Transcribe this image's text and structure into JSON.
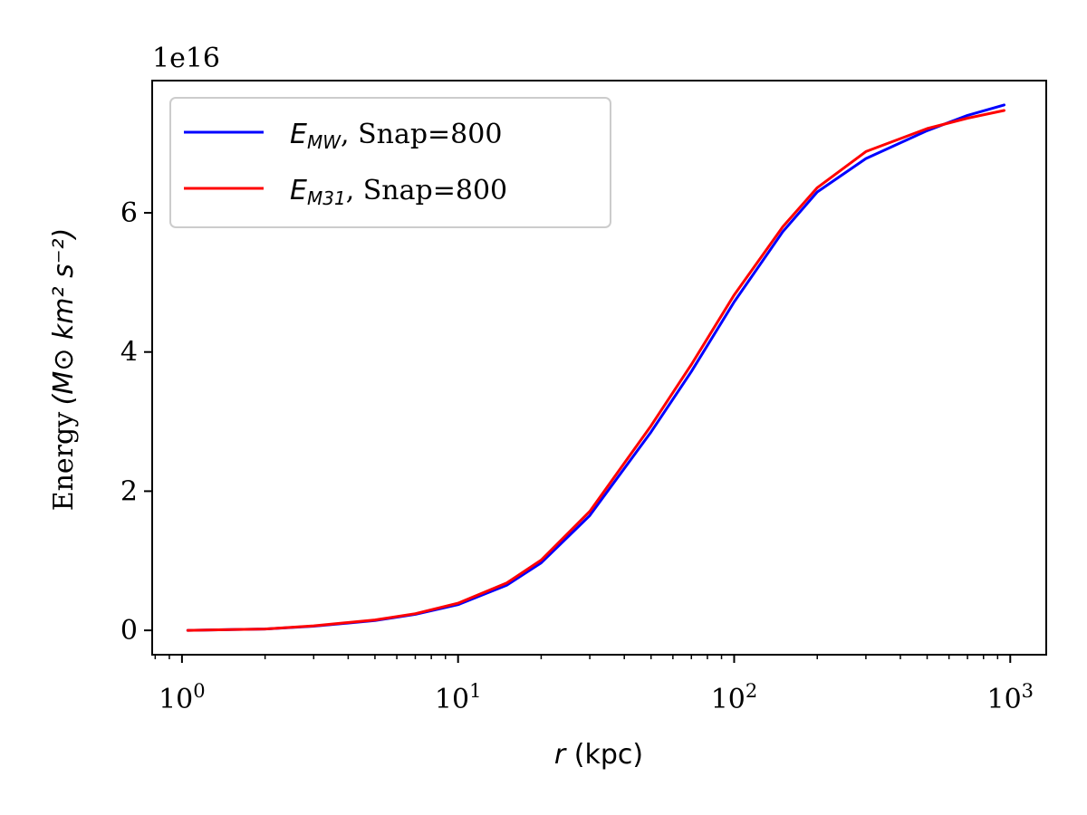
{
  "chart_data": {
    "type": "line",
    "xlabel_var": "r",
    "xlabel_unit": "(kpc)",
    "ylabel_text": "Energy",
    "ylabel_unit": "(M⊙ km² s⁻²)",
    "offset_text": "1e16",
    "x_scale": "log",
    "xlim": [
      0.78,
      1350
    ],
    "ylim": [
      -0.35,
      7.9
    ],
    "y_multiplier": 1e+16,
    "x_ticks": [
      {
        "value": 1,
        "base": "10",
        "exp": "0"
      },
      {
        "value": 10,
        "base": "10",
        "exp": "1"
      },
      {
        "value": 100,
        "base": "10",
        "exp": "2"
      },
      {
        "value": 1000,
        "base": "10",
        "exp": "3"
      }
    ],
    "y_ticks": [
      {
        "value": 0,
        "label": "0"
      },
      {
        "value": 2,
        "label": "2"
      },
      {
        "value": 4,
        "label": "4"
      },
      {
        "value": 6,
        "label": "6"
      }
    ],
    "grid": false,
    "legend_position": "upper-left",
    "series": [
      {
        "name_main": "E",
        "name_sub": "MW",
        "name_rest": ", Snap=800",
        "color": "#0000ff",
        "x": [
          1.05,
          2,
          3,
          5,
          7,
          10,
          15,
          20,
          30,
          50,
          70,
          100,
          150,
          200,
          300,
          500,
          700,
          950
        ],
        "y": [
          0.0,
          0.02,
          0.06,
          0.14,
          0.23,
          0.37,
          0.65,
          0.97,
          1.65,
          2.85,
          3.72,
          4.72,
          5.73,
          6.3,
          6.78,
          7.18,
          7.4,
          7.55
        ]
      },
      {
        "name_main": "E",
        "name_sub": "M31",
        "name_rest": ", Snap=800",
        "color": "#ff0000",
        "x": [
          1.05,
          2,
          3,
          5,
          7,
          10,
          15,
          20,
          30,
          50,
          70,
          100,
          150,
          200,
          300,
          500,
          700,
          950
        ],
        "y": [
          0.0,
          0.02,
          0.065,
          0.15,
          0.24,
          0.39,
          0.68,
          1.01,
          1.71,
          2.94,
          3.82,
          4.82,
          5.8,
          6.36,
          6.88,
          7.21,
          7.36,
          7.47
        ]
      }
    ]
  }
}
